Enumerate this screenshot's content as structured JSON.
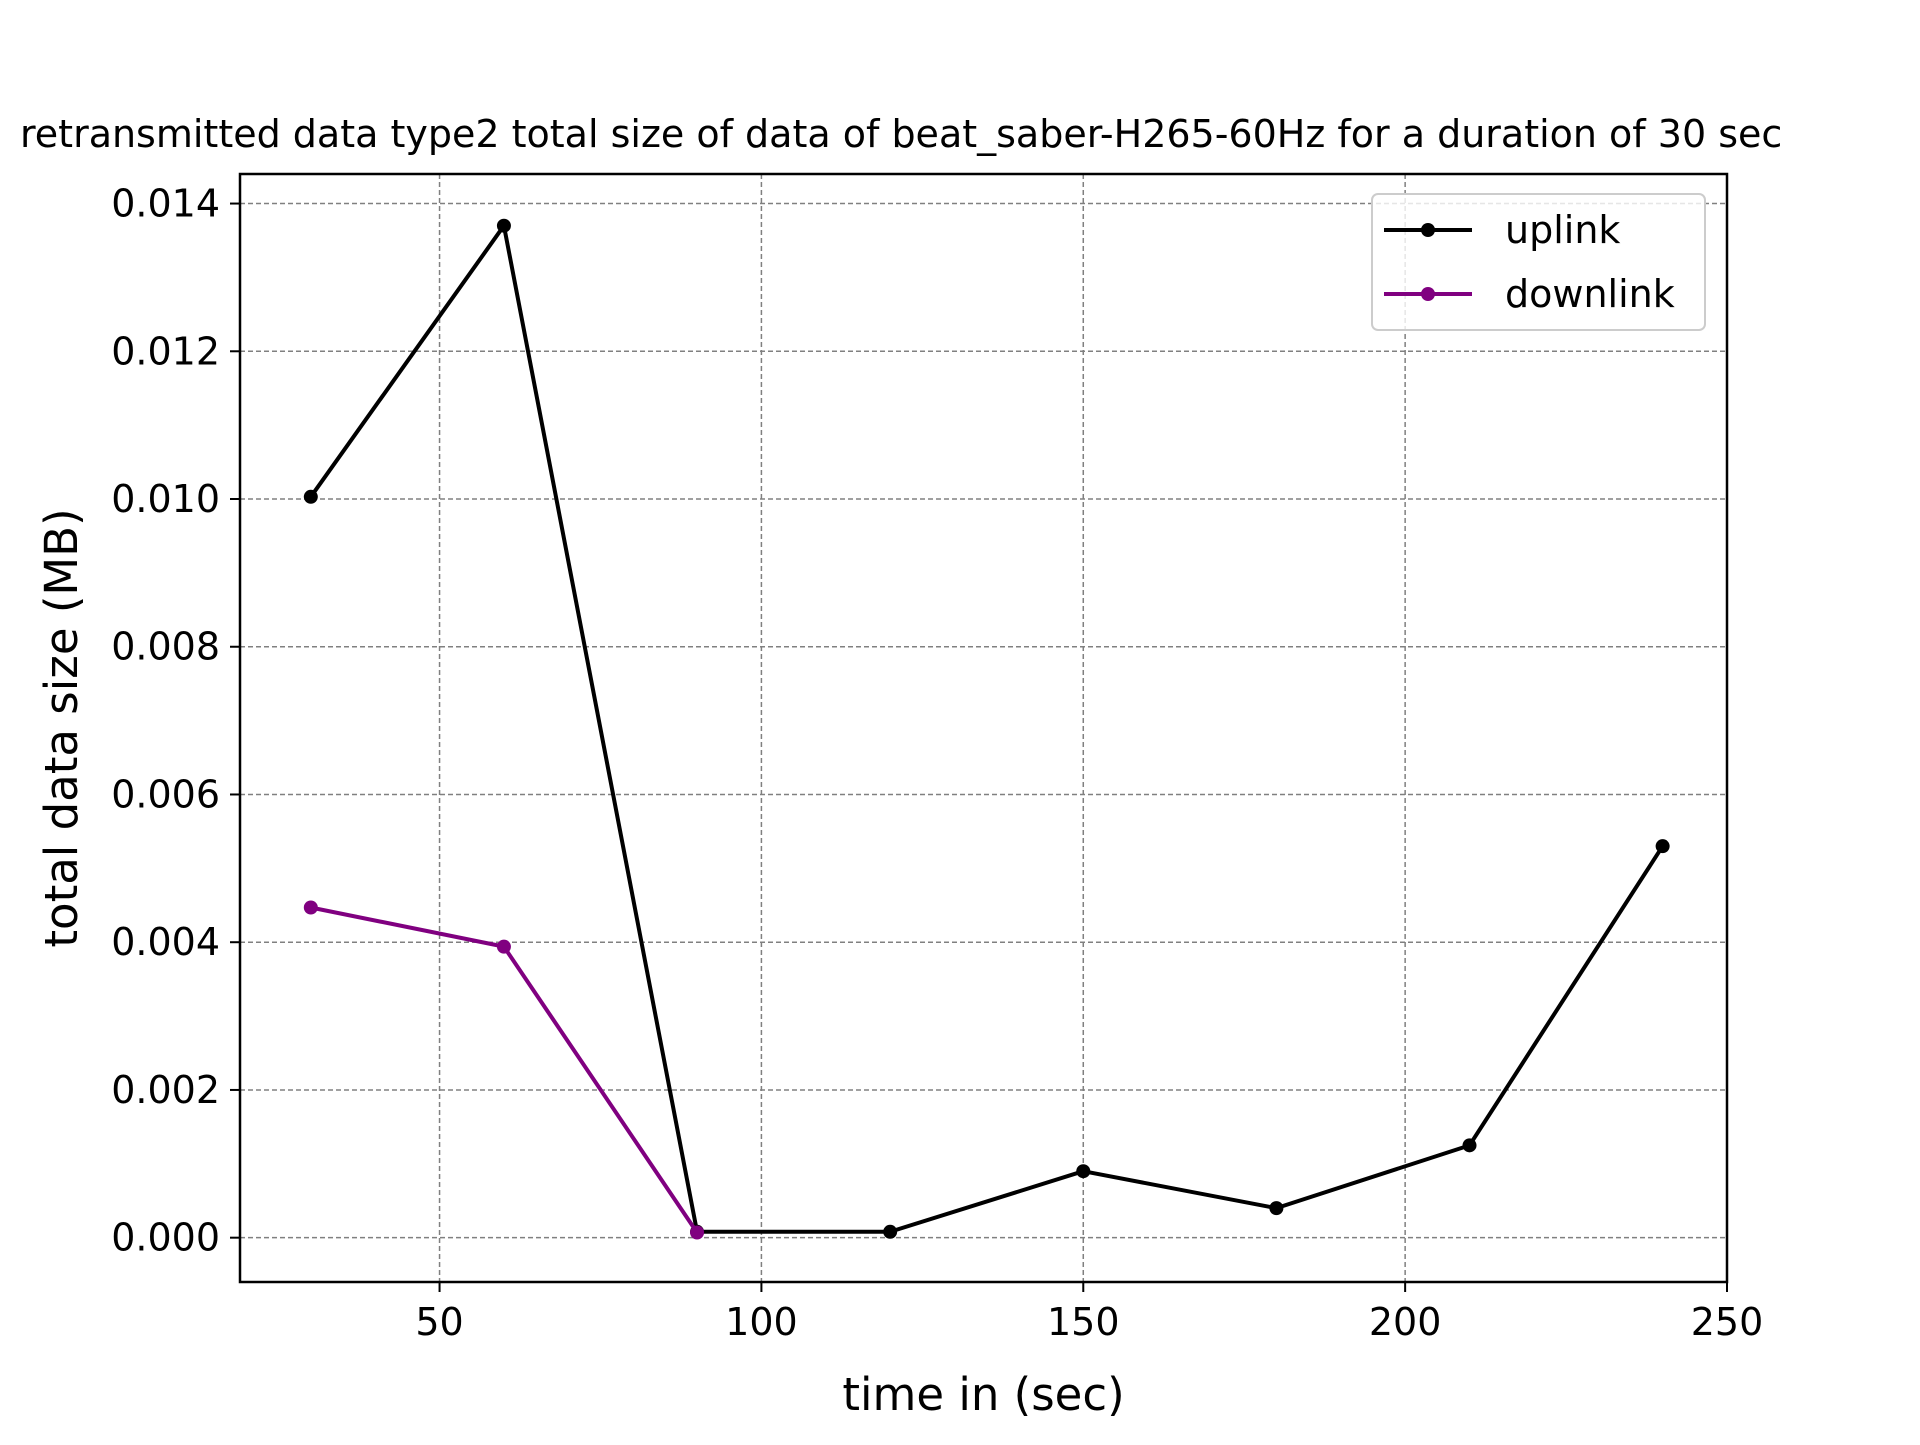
{
  "chart_data": {
    "type": "line",
    "title": "retransmitted data type2 total size of data of beat_saber-H265-60Hz for a duration of 30 sec",
    "xlabel": "time in (sec)",
    "ylabel": "total data size (MB)",
    "xlim": [
      19,
      250
    ],
    "ylim": [
      -0.0006,
      0.0144
    ],
    "xticks": [
      50,
      100,
      150,
      200,
      250
    ],
    "xtick_labels": [
      "50",
      "100",
      "150",
      "200",
      "250"
    ],
    "yticks": [
      0.0,
      0.002,
      0.004,
      0.006,
      0.008,
      0.01,
      0.012,
      0.014
    ],
    "ytick_labels": [
      "0.000",
      "0.002",
      "0.004",
      "0.006",
      "0.008",
      "0.010",
      "0.012",
      "0.014"
    ],
    "grid": true,
    "legend_position": "top-right",
    "series": [
      {
        "name": "uplink",
        "color": "#000000",
        "x": [
          30,
          60,
          90,
          120,
          150,
          180,
          210,
          240
        ],
        "y": [
          0.01003,
          0.0137,
          8e-05,
          8e-05,
          0.0009,
          0.0004,
          0.00125,
          0.0053
        ]
      },
      {
        "name": "downlink",
        "color": "#800080",
        "x": [
          30,
          60,
          90
        ],
        "y": [
          0.00447,
          0.00394,
          7e-05
        ]
      }
    ]
  }
}
